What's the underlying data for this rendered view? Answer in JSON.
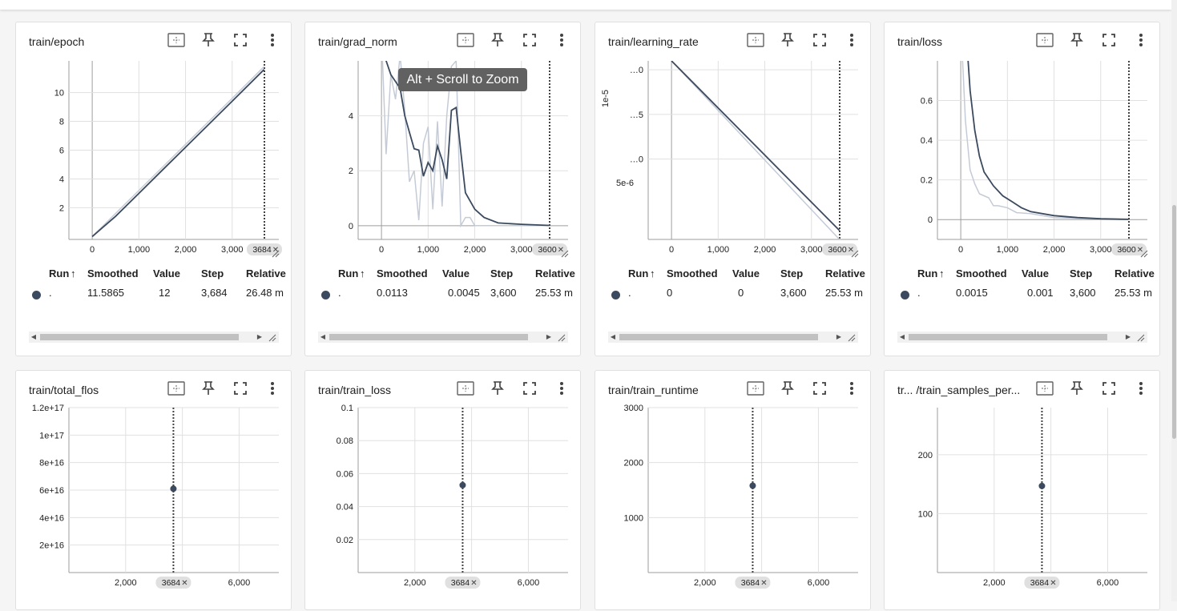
{
  "colors": {
    "smoothed": "#3b4a5e",
    "raw": "#c5cbd6",
    "grid": "#e0e0e0",
    "axis": "#9e9e9e",
    "tooltip_bg": "#616161"
  },
  "tooltip": "Alt + Scroll to Zoom",
  "icons": [
    "fit-domain-icon",
    "pin-icon",
    "fullscreen-icon",
    "more-vert-icon"
  ],
  "table_headers": [
    "Run",
    "Smoothed",
    "Value",
    "Step",
    "Relative"
  ],
  "sort_indicator": "↑",
  "cards": [
    {
      "title": "train/epoch",
      "x_ticks": [
        "0",
        "1,000",
        "2,000",
        "3,000"
      ],
      "y_ticks": [
        "2",
        "4",
        "6",
        "8",
        "10"
      ],
      "step_marker": "3684",
      "row": {
        "run": ".",
        "smoothed": "11.5865",
        "value": "12",
        "step": "3,684",
        "relative": "26.48 m"
      },
      "chart_data": {
        "type": "line",
        "xlim": [
          -500,
          4000
        ],
        "ylim": [
          -0.2,
          12.2
        ],
        "series": [
          {
            "values": [
              [
                0,
                0
              ],
              [
                500,
                1.6
              ],
              [
                1000,
                3.2
              ],
              [
                1500,
                4.8
              ],
              [
                2000,
                6.4
              ],
              [
                2500,
                8
              ],
              [
                3000,
                9.6
              ],
              [
                3684,
                11.8
              ]
            ]
          },
          {
            "values": [
              [
                0,
                0
              ],
              [
                500,
                1.4
              ],
              [
                1000,
                3.0
              ],
              [
                1500,
                4.6
              ],
              [
                2000,
                6.2
              ],
              [
                2500,
                7.8
              ],
              [
                3000,
                9.4
              ],
              [
                3684,
                11.6
              ]
            ]
          }
        ]
      }
    },
    {
      "title": "train/grad_norm",
      "x_ticks": [
        "0",
        "1,000",
        "2,000",
        "3,000"
      ],
      "y_ticks": [
        "0",
        "2",
        "4"
      ],
      "step_marker": "3600",
      "row": {
        "run": ".",
        "smoothed": "0.0113",
        "value": "0.0045",
        "step": "3,600",
        "relative": "25.53 m"
      },
      "chart_data": {
        "type": "line",
        "xlim": [
          -500,
          4000
        ],
        "ylim": [
          -0.5,
          6
        ],
        "series": [
          {
            "values": [
              [
                0,
                7
              ],
              [
                100,
                2.6
              ],
              [
                200,
                5.5
              ],
              [
                300,
                4.6
              ],
              [
                400,
                6.2
              ],
              [
                500,
                4.2
              ],
              [
                600,
                1.6
              ],
              [
                700,
                2.0
              ],
              [
                800,
                0.2
              ],
              [
                900,
                3.0
              ],
              [
                1000,
                3.6
              ],
              [
                1100,
                0.6
              ],
              [
                1200,
                3.8
              ],
              [
                1300,
                0.7
              ],
              [
                1400,
                4.0
              ],
              [
                1500,
                5.8
              ],
              [
                1600,
                6.0
              ],
              [
                1700,
                0.0
              ],
              [
                1800,
                0.3
              ],
              [
                1900,
                0.3
              ],
              [
                2000,
                0.0
              ],
              [
                2500,
                0.0
              ],
              [
                3000,
                0.0
              ],
              [
                3600,
                0.0
              ]
            ]
          },
          {
            "values": [
              [
                0,
                6.5
              ],
              [
                200,
                5.5
              ],
              [
                400,
                5.0
              ],
              [
                500,
                4.0
              ],
              [
                600,
                3.4
              ],
              [
                700,
                2.8
              ],
              [
                800,
                2.75
              ],
              [
                900,
                1.8
              ],
              [
                1000,
                2.3
              ],
              [
                1100,
                2.0
              ],
              [
                1200,
                2.9
              ],
              [
                1300,
                2.4
              ],
              [
                1400,
                1.7
              ],
              [
                1500,
                4.2
              ],
              [
                1600,
                4.3
              ],
              [
                1700,
                2.7
              ],
              [
                1800,
                1.2
              ],
              [
                2000,
                0.6
              ],
              [
                2200,
                0.3
              ],
              [
                2500,
                0.1
              ],
              [
                3000,
                0.05
              ],
              [
                3600,
                0.01
              ]
            ]
          }
        ]
      }
    },
    {
      "title": "train/learning_rate",
      "x_ticks": [
        "0",
        "1,000",
        "2,000",
        "3,000"
      ],
      "y_ticks": [
        "…0",
        "…5",
        "…0"
      ],
      "y_side_labels": [
        "1e-5",
        "5e-6"
      ],
      "step_marker": "3600",
      "row": {
        "run": ".",
        "smoothed": "0",
        "value": "0",
        "step": "3,600",
        "relative": "25.53 m"
      },
      "chart_data": {
        "type": "line",
        "xlim": [
          -500,
          4000
        ],
        "ylim": [
          0,
          2
        ],
        "series": [
          {
            "values": [
              [
                0,
                2
              ],
              [
                3600,
                0
              ]
            ]
          },
          {
            "values": [
              [
                0,
                2
              ],
              [
                3600,
                0.1
              ]
            ]
          }
        ]
      }
    },
    {
      "title": "train/loss",
      "x_ticks": [
        "0",
        "1,000",
        "2,000",
        "3,000"
      ],
      "y_ticks": [
        "0",
        "0.2",
        "0.4",
        "0.6"
      ],
      "step_marker": "3600",
      "row": {
        "run": ".",
        "smoothed": "0.0015",
        "value": "0.001",
        "step": "3,600",
        "relative": "25.53 m"
      },
      "chart_data": {
        "type": "line",
        "xlim": [
          -500,
          4000
        ],
        "ylim": [
          -0.1,
          0.8
        ],
        "series": [
          {
            "values": [
              [
                0,
                1.0
              ],
              [
                100,
                0.5
              ],
              [
                200,
                0.25
              ],
              [
                300,
                0.18
              ],
              [
                400,
                0.13
              ],
              [
                500,
                0.12
              ],
              [
                600,
                0.11
              ],
              [
                700,
                0.07
              ],
              [
                800,
                0.07
              ],
              [
                1000,
                0.06
              ],
              [
                1200,
                0.035
              ],
              [
                1500,
                0.03
              ],
              [
                2000,
                0.01
              ],
              [
                3000,
                0.003
              ],
              [
                3600,
                0.001
              ]
            ]
          },
          {
            "values": [
              [
                100,
                1.0
              ],
              [
                200,
                0.65
              ],
              [
                300,
                0.45
              ],
              [
                400,
                0.32
              ],
              [
                500,
                0.24
              ],
              [
                700,
                0.17
              ],
              [
                900,
                0.12
              ],
              [
                1100,
                0.09
              ],
              [
                1300,
                0.06
              ],
              [
                1500,
                0.04
              ],
              [
                2000,
                0.02
              ],
              [
                2500,
                0.01
              ],
              [
                3000,
                0.004
              ],
              [
                3600,
                0.0015
              ]
            ]
          }
        ]
      }
    },
    {
      "title": "train/total_flos",
      "x_ticks": [
        "2,000",
        "6,000"
      ],
      "y_ticks": [
        "2e+16",
        "4e+16",
        "6e+16",
        "8e+16",
        "1e+17",
        "1.2e+17"
      ],
      "step_marker": "3684",
      "chart_data": {
        "type": "scatter",
        "xlim": [
          0,
          7400
        ],
        "ylim": [
          0,
          1.2e+17
        ],
        "points": [
          [
            3684,
            6.1e+16
          ]
        ]
      }
    },
    {
      "title": "train/train_loss",
      "x_ticks": [
        "2,000",
        "6,000"
      ],
      "y_ticks": [
        "0.02",
        "0.04",
        "0.06",
        "0.08",
        "0.1"
      ],
      "step_marker": "3684",
      "chart_data": {
        "type": "scatter",
        "xlim": [
          0,
          7400
        ],
        "ylim": [
          0,
          0.1
        ],
        "points": [
          [
            3684,
            0.053
          ]
        ]
      }
    },
    {
      "title": "train/train_runtime",
      "x_ticks": [
        "2,000",
        "6,000"
      ],
      "y_ticks": [
        "1000",
        "2000",
        "3000"
      ],
      "step_marker": "3684",
      "chart_data": {
        "type": "scatter",
        "xlim": [
          0,
          7400
        ],
        "ylim": [
          0,
          3000
        ],
        "points": [
          [
            3684,
            1580
          ]
        ]
      }
    },
    {
      "title": "tr... /train_samples_per...",
      "x_ticks": [
        "2,000",
        "6,000"
      ],
      "y_ticks": [
        "100",
        "200"
      ],
      "step_marker": "3684",
      "chart_data": {
        "type": "scatter",
        "xlim": [
          0,
          7400
        ],
        "ylim": [
          0,
          280
        ],
        "points": [
          [
            3684,
            147
          ]
        ]
      }
    }
  ]
}
